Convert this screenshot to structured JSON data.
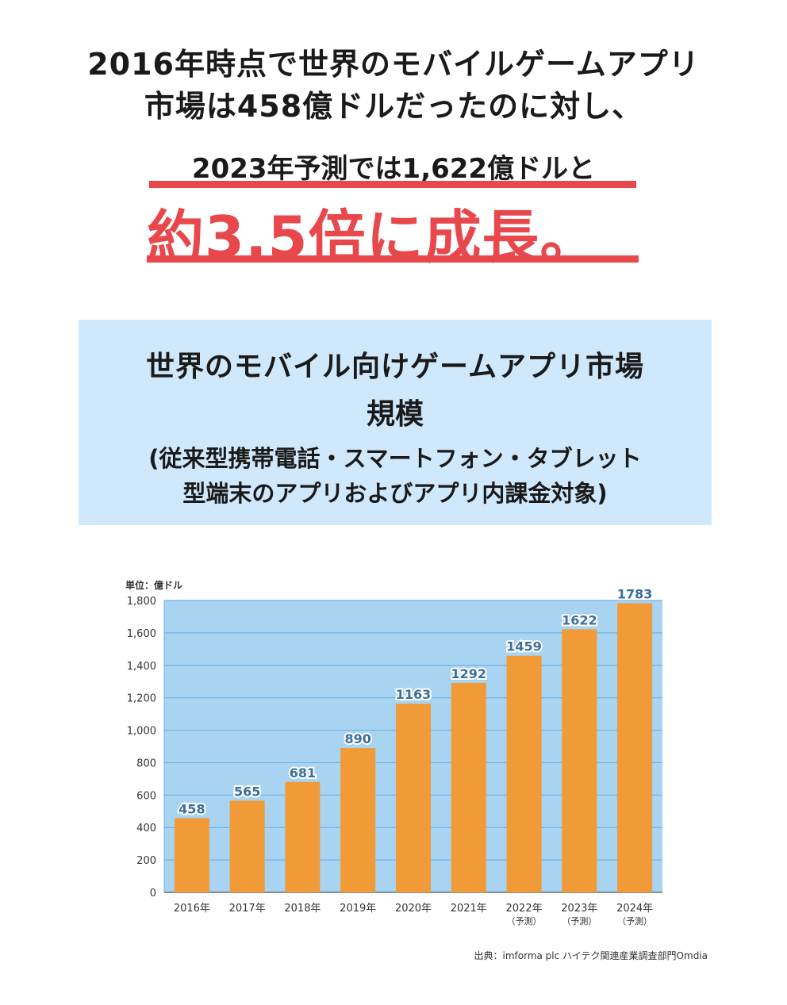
{
  "headline": {
    "line1": "2016年時点で世界のモバイルゲームアプリ",
    "line2": "市場は458億ドルだったのに対し、",
    "line3": "2023年予測では1,622億ドルと",
    "emphasis": "約3.5倍に成長。"
  },
  "info_box": {
    "title_line1": "世界のモバイル向けゲームアプリ市場",
    "title_line2": "規模",
    "note_line1": "(従来型携帯電話・スマートフォン・タブレット",
    "note_line2": "型端末のアプリおよびアプリ内課金対象)"
  },
  "source": "出典：imforma plc ハイテク関連産業調査部門Omdia",
  "colors": {
    "accent_red": "#e8474b",
    "box_bg": "#cfe8fb",
    "plot_bg": "#a8d4f2",
    "bar": "#f09a38",
    "value_label": "#3b6f9c"
  },
  "chart_data": {
    "type": "bar",
    "unit_label": "単位：億ドル",
    "categories": [
      "2016年",
      "2017年",
      "2018年",
      "2019年",
      "2020年",
      "2021年",
      "2022年",
      "2023年",
      "2024年"
    ],
    "category_notes": [
      "",
      "",
      "",
      "",
      "",
      "",
      "（予測）",
      "（予測）",
      "（予測）"
    ],
    "values": [
      458,
      565,
      681,
      890,
      1163,
      1292,
      1459,
      1622,
      1783
    ],
    "ylim": [
      0,
      1800
    ],
    "yticks": [
      "0",
      "200",
      "400",
      "600",
      "800",
      "1,000",
      "1,200",
      "1,400",
      "1,600",
      "1,800"
    ],
    "grid": true
  }
}
